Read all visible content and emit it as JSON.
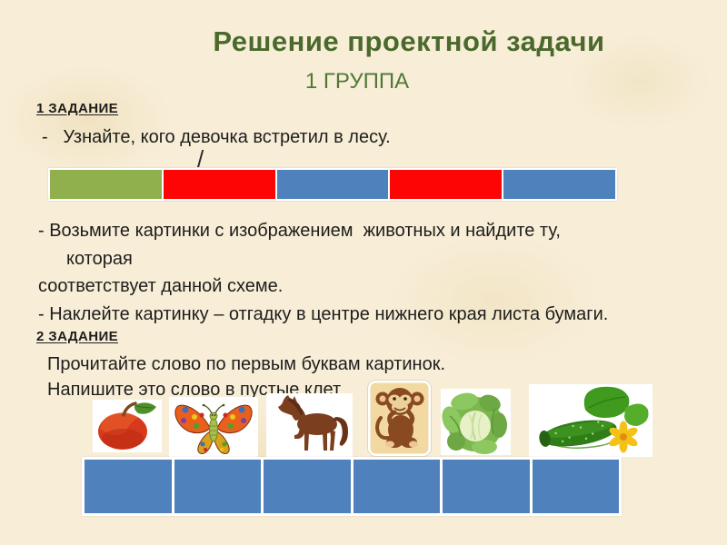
{
  "slide": {
    "title": "Решение проектной задачи",
    "subtitle": "1 ГРУППА",
    "colors": {
      "background": "#f8eed8",
      "title_green": "#4b692c",
      "subtitle_green": "#507736",
      "text": "#1d1d1b",
      "bar_green": "#8fb04d",
      "bar_red": "#fe0505",
      "bar_blue": "#4f81bd",
      "cell_blue": "#4f81bd",
      "frame_white": "#ffffff"
    }
  },
  "task1": {
    "heading": "1 ЗАДАНИЕ",
    "bullet1": "-   Узнайте, кого девочка встретил в лесу.",
    "stress_mark": "/",
    "scheme_segments": [
      {
        "name": "green",
        "color": "#8fb04d"
      },
      {
        "name": "red",
        "color": "#fe0505"
      },
      {
        "name": "blue",
        "color": "#4f81bd"
      },
      {
        "name": "red-2",
        "color": "#fe0505"
      },
      {
        "name": "blue-2",
        "color": "#4f81bd"
      }
    ],
    "bullet2_line1": "- Возьмите картинки с изображением  животных и найдите ту,",
    "bullet2_line2": "которая",
    "line3": "соответствует данной схеме.",
    "line4": "- Наклейте картинку – отгадку в центре нижнего края листа бумаги."
  },
  "task2": {
    "heading": "2 ЗАДАНИЕ",
    "line1": "Прочитайте слово по первым буквам картинок.",
    "line2": "Напишите это слово в пустые клет",
    "picture_names": [
      "apple",
      "butterfly",
      "horse",
      "monkey",
      "cabbage",
      "cucumber"
    ],
    "answer_cells": 6
  }
}
